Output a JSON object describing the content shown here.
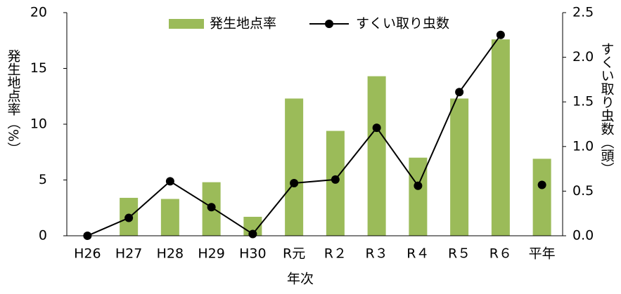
{
  "chart_data": {
    "type": "bar-line",
    "x_label": "年次",
    "y_label": "発生地点率（%）",
    "y2_label": "すくい取り虫数（頭）",
    "categories": [
      "H26",
      "H27",
      "H28",
      "H29",
      "H30",
      "R元",
      "R２",
      "R３",
      "R４",
      "R５",
      "R６",
      "平年"
    ],
    "series": [
      {
        "name": "発生地点率",
        "type": "bar",
        "color": "#9bbb59",
        "values": [
          0,
          3.4,
          3.3,
          4.8,
          1.7,
          12.3,
          9.4,
          14.3,
          7.0,
          12.3,
          17.6,
          6.9
        ]
      },
      {
        "name": "すくい取り虫数",
        "type": "line",
        "color": "#000000",
        "axis": "y2",
        "values": [
          0.0,
          0.2,
          0.61,
          0.32,
          0.02,
          0.59,
          0.63,
          1.21,
          0.56,
          1.61,
          2.25,
          0.57
        ]
      }
    ],
    "ylim": [
      0,
      20
    ],
    "yticks": [
      0,
      5,
      10,
      15,
      20
    ],
    "y2lim": [
      0,
      2.5
    ],
    "y2ticks": [
      {
        "value": 0,
        "label": "0.0"
      },
      {
        "value": 0.5,
        "label": "0.5"
      },
      {
        "value": 1,
        "label": "1.0"
      },
      {
        "value": 1.5,
        "label": "1.5"
      },
      {
        "value": 2,
        "label": "2.0"
      },
      {
        "value": 2.5,
        "label": "2.5"
      }
    ]
  }
}
